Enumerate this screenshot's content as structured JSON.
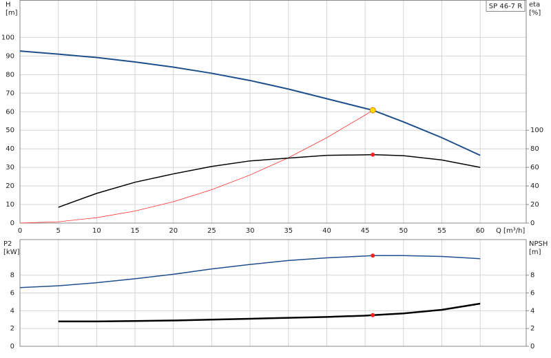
{
  "label": "SP 46-7 R",
  "chart_data": [
    {
      "type": "line",
      "y_label": "H",
      "y_unit": "[m]",
      "y2_label": "eta",
      "y2_unit": "[%]",
      "x_label": "Q [m³/h]",
      "x": [
        0,
        5,
        10,
        15,
        20,
        25,
        30,
        35,
        40,
        45,
        46,
        50,
        55,
        60
      ],
      "xlim": [
        0,
        66
      ],
      "xticks": [
        0,
        5,
        10,
        15,
        20,
        25,
        30,
        35,
        40,
        45,
        50,
        55,
        60
      ],
      "ylim": [
        0,
        120
      ],
      "yticks": [
        0,
        10,
        20,
        30,
        40,
        50,
        60,
        70,
        80,
        90,
        100
      ],
      "y2lim": [
        0,
        240
      ],
      "y2ticks": [
        0,
        20,
        40,
        60,
        80,
        100
      ],
      "grid": true,
      "series": [
        {
          "color": "#1f4e8c",
          "width": 2,
          "values": [
            92.7,
            91,
            89.2,
            86.8,
            84,
            80.7,
            76.8,
            72.2,
            67,
            61.8,
            60.8,
            54.5,
            46,
            36.5
          ]
        },
        {
          "color": "#ff3030",
          "width": 0.8,
          "values": [
            0,
            0.7,
            2.9,
            6.5,
            11.5,
            18,
            25.9,
            35.2,
            46,
            58.2,
            60.8,
            null,
            null,
            null
          ],
          "marker_index": 10,
          "marker_color": "#ffe000"
        },
        {
          "color": "#000000",
          "width": 1.5,
          "axis": "y2",
          "values": [
            null,
            17,
            32,
            44,
            53,
            61,
            67,
            70,
            73,
            73.5,
            73.7,
            72.6,
            68,
            60
          ],
          "marker_index": 10,
          "marker_color": "#ff2020"
        }
      ]
    },
    {
      "type": "line",
      "y_label": "P2",
      "y_unit": "[kW]",
      "y2_label": "NPSH",
      "y2_unit": "[m]",
      "x": [
        0,
        5,
        10,
        15,
        20,
        25,
        30,
        35,
        40,
        45,
        46,
        50,
        55,
        60
      ],
      "xlim": [
        0,
        66
      ],
      "ylim": [
        0,
        12
      ],
      "yticks": [
        0,
        2,
        4,
        6,
        8
      ],
      "y2lim": [
        0,
        12
      ],
      "y2ticks": [
        0,
        2,
        4,
        6,
        8
      ],
      "grid": true,
      "series": [
        {
          "color": "#1f4e8c",
          "width": 1.5,
          "values": [
            6.6,
            6.8,
            7.15,
            7.6,
            8.1,
            8.7,
            9.2,
            9.65,
            9.95,
            10.15,
            10.2,
            10.2,
            10.1,
            9.85
          ],
          "marker_index": 10,
          "marker_color": "#ff2020"
        },
        {
          "color": "#000000",
          "width": 2.5,
          "axis": "y2",
          "values": [
            null,
            2.8,
            2.8,
            2.85,
            2.9,
            3.0,
            3.1,
            3.2,
            3.3,
            3.45,
            3.5,
            3.7,
            4.1,
            4.8
          ],
          "marker_index": 10,
          "marker_color": "#ff2020"
        }
      ]
    }
  ]
}
